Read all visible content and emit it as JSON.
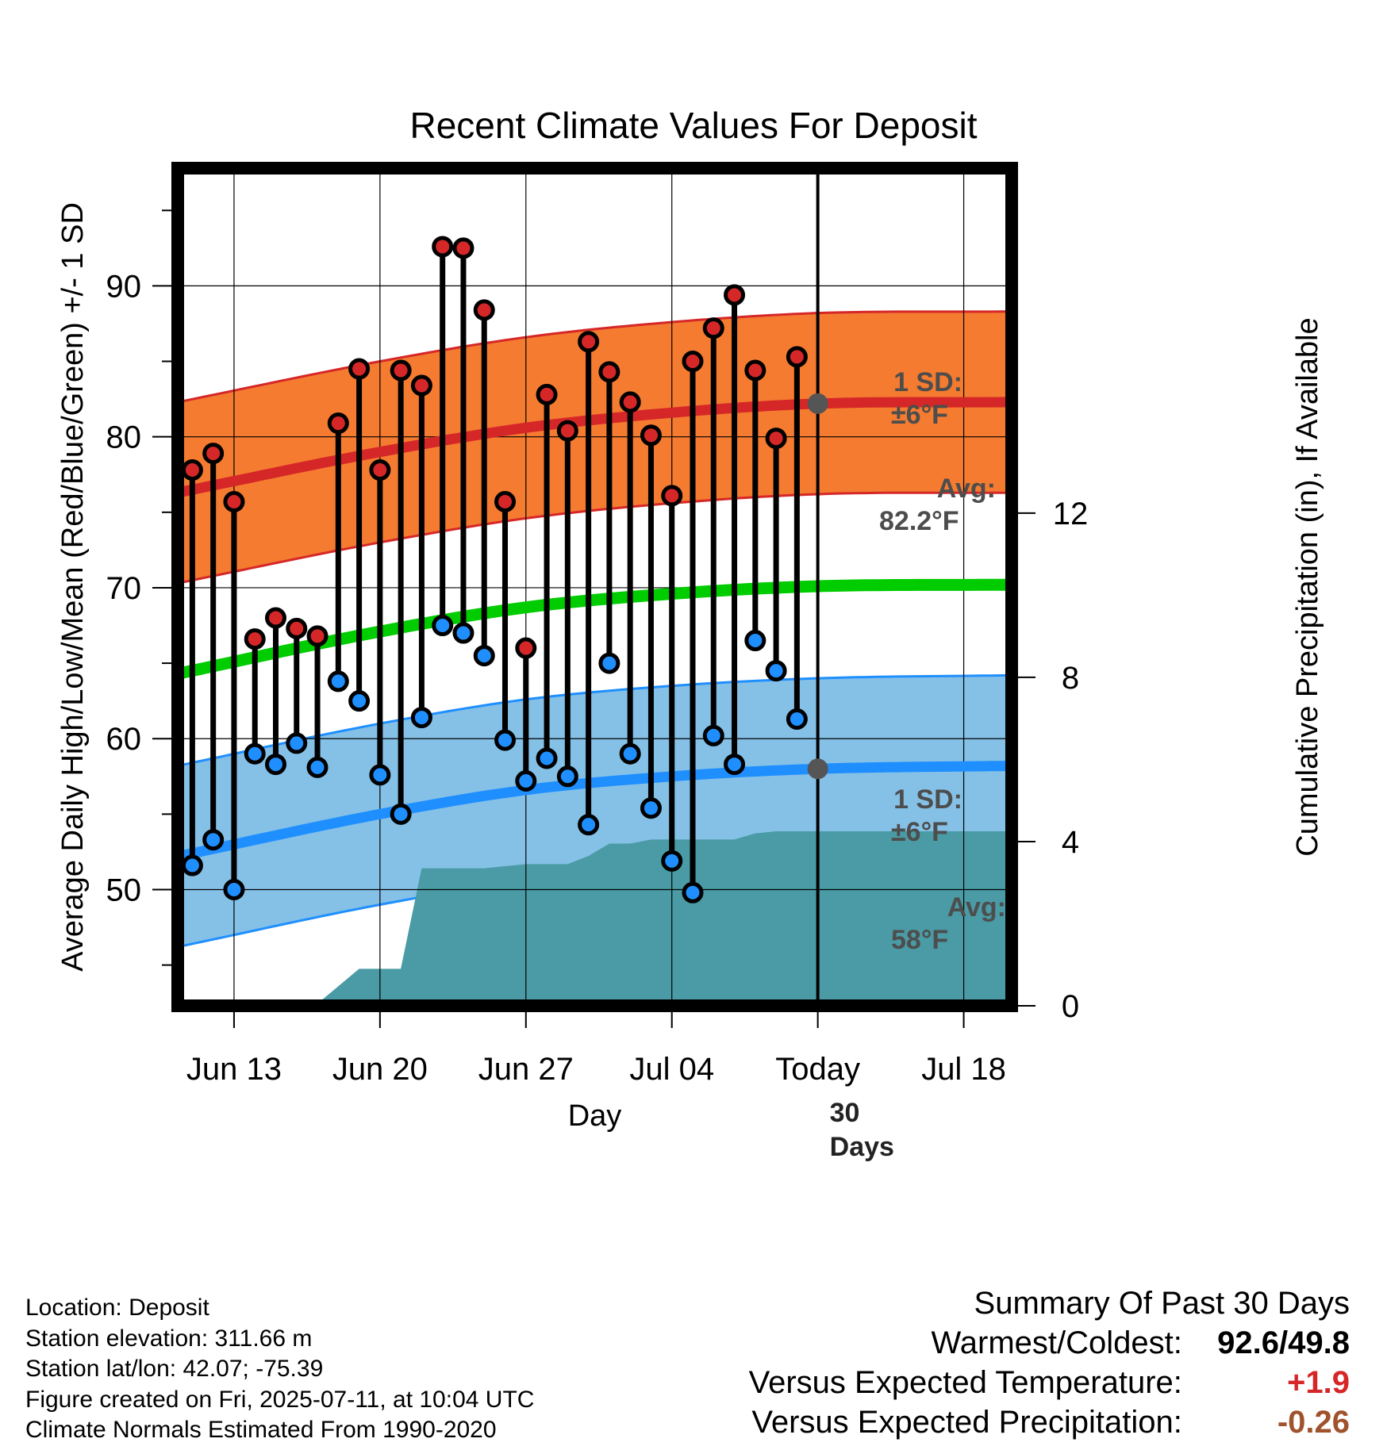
{
  "chart_data": {
    "type": "line",
    "title": "Recent Climate Values For Deposit",
    "xlabel": "Day",
    "ylabel_left": "Average Daily High/Low/Mean (Red/Blue/Green) +/- 1 SD",
    "ylabel_right": "Cumulative Precipitation (in), If Available",
    "x_ticks": [
      "Jun 13",
      "Jun 20",
      "Jun 27",
      "Jul 04",
      "Today",
      "Jul 18"
    ],
    "x_tick_days": [
      0,
      7,
      14,
      21,
      28,
      35
    ],
    "xlim_days": [
      -2.7,
      37.3
    ],
    "ylim_temp": [
      42.3,
      97.8
    ],
    "y_ticks_temp": [
      50,
      60,
      70,
      80,
      90
    ],
    "ylim_precip": [
      0,
      20.4
    ],
    "y_ticks_precip": [
      0,
      4,
      8,
      12
    ],
    "grid": true,
    "colors": {
      "high": "#d62728",
      "low": "#1f8fff",
      "mean": "#00cc00",
      "high_band": "#f47b30",
      "low_band": "#85c1e7",
      "precip": "#4a9ba5"
    },
    "normal_high": {
      "x": [
        -2.7,
        7,
        14,
        21,
        28,
        37.3
      ],
      "values": [
        76.3,
        79.0,
        80.6,
        81.6,
        82.2,
        82.3
      ]
    },
    "normal_low": {
      "x": [
        -2.7,
        7,
        14,
        21,
        28,
        37.3
      ],
      "values": [
        52.2,
        55.0,
        56.6,
        57.5,
        58.0,
        58.2
      ]
    },
    "normal_mean": {
      "x": [
        -2.7,
        7,
        14,
        21,
        28,
        37.3
      ],
      "values": [
        64.3,
        67.1,
        68.7,
        69.6,
        70.1,
        70.2
      ]
    },
    "sd_label_high": "1 SD:",
    "sd_value_high": "±6°F",
    "avg_label_high": "Avg:",
    "avg_value_high": "82.2°F",
    "sd_label_low": "1 SD:",
    "sd_value_low": "±6°F",
    "avg_label_low": "Avg:",
    "avg_value_low": "58°F",
    "window_label_line1": "30",
    "window_label_line2": "Days",
    "daily": {
      "day": [
        -2,
        -1,
        0,
        1,
        2,
        3,
        4,
        5,
        6,
        7,
        8,
        9,
        10,
        11,
        12,
        13,
        14,
        15,
        16,
        17,
        18,
        19,
        20,
        21,
        22,
        23,
        24,
        25,
        26,
        27
      ],
      "high": [
        77.8,
        78.9,
        75.7,
        66.6,
        68.0,
        67.3,
        66.8,
        80.9,
        84.5,
        77.8,
        84.4,
        83.4,
        92.6,
        92.5,
        88.4,
        75.7,
        66.0,
        82.8,
        80.4,
        86.3,
        84.3,
        82.3,
        80.1,
        76.1,
        85.0,
        87.2,
        89.4,
        84.4,
        79.9,
        85.3
      ],
      "low": [
        51.6,
        53.3,
        50.0,
        59.0,
        58.3,
        59.7,
        58.1,
        63.8,
        62.5,
        57.6,
        55.0,
        61.4,
        67.5,
        67.0,
        65.5,
        59.9,
        57.2,
        58.7,
        57.5,
        54.3,
        65.0,
        59.0,
        55.4,
        51.9,
        49.8,
        60.2,
        58.3,
        66.5,
        64.5,
        61.3
      ]
    },
    "precip_cumulative": {
      "x": [
        -2.7,
        1.5,
        1.5,
        3.0,
        4.0,
        6.0,
        7.0,
        8.0,
        9.0,
        10.0,
        12.0,
        13.0,
        14.0,
        15.0,
        16.0,
        17.0,
        18.0,
        19.0,
        20.0,
        21.0,
        22.0,
        23.0,
        24.0,
        25.0,
        26.0,
        28.0,
        37.3
      ],
      "values": [
        0.0,
        0.0,
        0.02,
        0.05,
        0.05,
        0.9,
        0.9,
        0.9,
        3.35,
        3.35,
        3.35,
        3.4,
        3.45,
        3.45,
        3.45,
        3.65,
        3.95,
        3.95,
        4.05,
        4.05,
        4.05,
        4.05,
        4.05,
        4.2,
        4.25,
        4.25,
        4.25
      ]
    }
  },
  "info": {
    "location": "Location: Deposit",
    "elevation": "Station elevation: 311.66 m",
    "latlon": "Station lat/lon: 42.07; -75.39",
    "created": "Figure created on Fri, 2025-07-11, at 10:04 UTC",
    "normals": "Climate Normals Estimated From 1990-2020"
  },
  "summary": {
    "title": "Summary Of Past 30 Days",
    "warm_cold_label": "Warmest/Coldest:",
    "warm_cold_value": "92.6/49.8",
    "temp_label": "Versus Expected Temperature:",
    "temp_value": "+1.9",
    "precip_label": "Versus Expected Precipitation:",
    "precip_value": "-0.26"
  }
}
